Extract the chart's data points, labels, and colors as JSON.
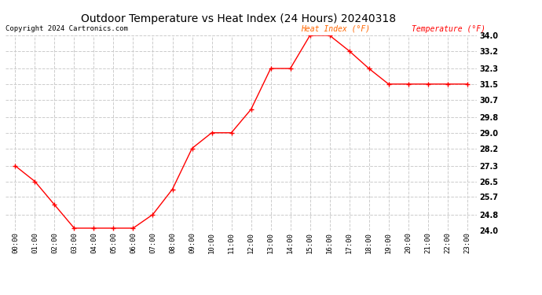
{
  "title": "Outdoor Temperature vs Heat Index (24 Hours) 20240318",
  "copyright": "Copyright 2024 Cartronics.com",
  "legend_heat": "Heat Index (°F)",
  "legend_temp": "Temperature (°F)",
  "hours": [
    "00:00",
    "01:00",
    "02:00",
    "03:00",
    "04:00",
    "05:00",
    "06:00",
    "07:00",
    "08:00",
    "09:00",
    "10:00",
    "11:00",
    "12:00",
    "13:00",
    "14:00",
    "15:00",
    "16:00",
    "17:00",
    "18:00",
    "19:00",
    "20:00",
    "21:00",
    "22:00",
    "23:00"
  ],
  "temperature": [
    27.3,
    26.5,
    25.3,
    24.1,
    24.1,
    24.1,
    24.1,
    24.8,
    26.1,
    28.2,
    29.0,
    29.0,
    30.2,
    32.3,
    32.3,
    34.0,
    34.0,
    33.2,
    32.3,
    31.5,
    31.5,
    31.5,
    31.5,
    31.5
  ],
  "heat_index": [
    27.3,
    26.5,
    25.3,
    24.1,
    24.1,
    24.1,
    24.1,
    24.8,
    26.1,
    28.2,
    29.0,
    29.0,
    30.2,
    32.3,
    32.3,
    34.0,
    34.0,
    33.2,
    32.3,
    31.5,
    31.5,
    31.5,
    31.5,
    31.5
  ],
  "ylim_min": 24.0,
  "ylim_max": 34.0,
  "yticks": [
    24.0,
    24.8,
    25.7,
    26.5,
    27.3,
    28.2,
    29.0,
    29.8,
    30.7,
    31.5,
    32.3,
    33.2,
    34.0
  ],
  "line_color": "#ff0000",
  "heat_index_color": "#ff6600",
  "temp_color": "#ff0000",
  "bg_color": "#ffffff",
  "grid_color": "#cccccc",
  "title_color": "#000000",
  "copyright_color": "#000000"
}
